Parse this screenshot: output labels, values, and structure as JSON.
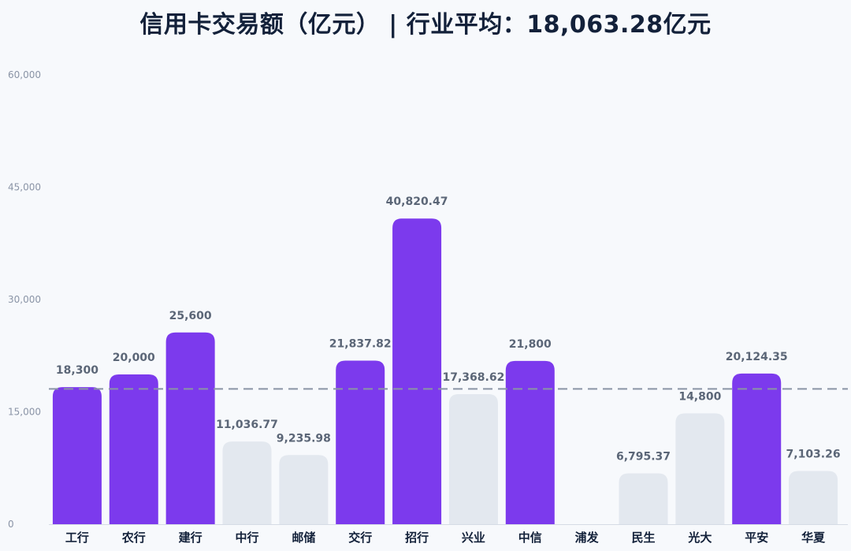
{
  "chart_data": {
    "type": "bar",
    "title": "信用卡交易额（亿元） | 行业平均：18,063.28亿元",
    "xlabel": "",
    "ylabel": "",
    "ylim": [
      0,
      60000
    ],
    "yticks": [
      0,
      15000,
      30000,
      45000,
      60000
    ],
    "ytick_labels": [
      "0",
      "15,000",
      "30,000",
      "45,000",
      "60,000"
    ],
    "average_line": 18063.28,
    "grid": false,
    "legend": "none",
    "categories": [
      "工行",
      "农行",
      "建行",
      "中行",
      "邮储",
      "交行",
      "招行",
      "兴业",
      "中信",
      "浦发",
      "民生",
      "光大",
      "平安",
      "华夏"
    ],
    "values": [
      18300,
      20000,
      25600,
      11036.77,
      9235.98,
      21837.82,
      40820.47,
      17368.62,
      21800,
      null,
      6795.37,
      14800,
      20124.35,
      7103.26
    ],
    "value_labels": [
      "18,300",
      "20,000",
      "25,600",
      "11,036.77",
      "9,235.98",
      "21,837.82",
      "40,820.47",
      "17,368.62",
      "21,800",
      "",
      "6,795.37",
      "14,800",
      "20,124.35",
      "7,103.26"
    ],
    "highlighted": [
      true,
      true,
      true,
      false,
      false,
      true,
      true,
      false,
      true,
      false,
      false,
      false,
      true,
      false
    ],
    "colors": {
      "highlight": "#7c3aed",
      "normal": "#e3e8ef",
      "average_line": "#8a94a6",
      "value_label": "#5b6677",
      "tick_label": "#8a94a6",
      "category_label": "#13213a",
      "axis": "#d5dbe5"
    }
  }
}
